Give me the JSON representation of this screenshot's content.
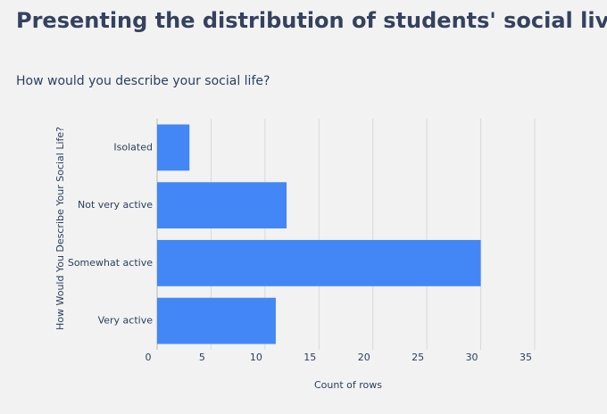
{
  "chart_data": {
    "type": "bar",
    "orientation": "horizontal",
    "title": "Presenting the distribution of students' social lives.",
    "subtitle": "How would you describe your social life?",
    "x_label": "Count of rows",
    "y_label": "How Would You Describe Your Social Life?",
    "categories": [
      "Isolated",
      "Not very active",
      "Somewhat active",
      "Very active"
    ],
    "values": [
      3,
      12,
      30,
      11
    ],
    "color": "#4287f5",
    "xlim": [
      0,
      35
    ],
    "xticks": [
      0,
      5,
      10,
      15,
      20,
      25,
      30,
      35
    ],
    "grid": true
  }
}
